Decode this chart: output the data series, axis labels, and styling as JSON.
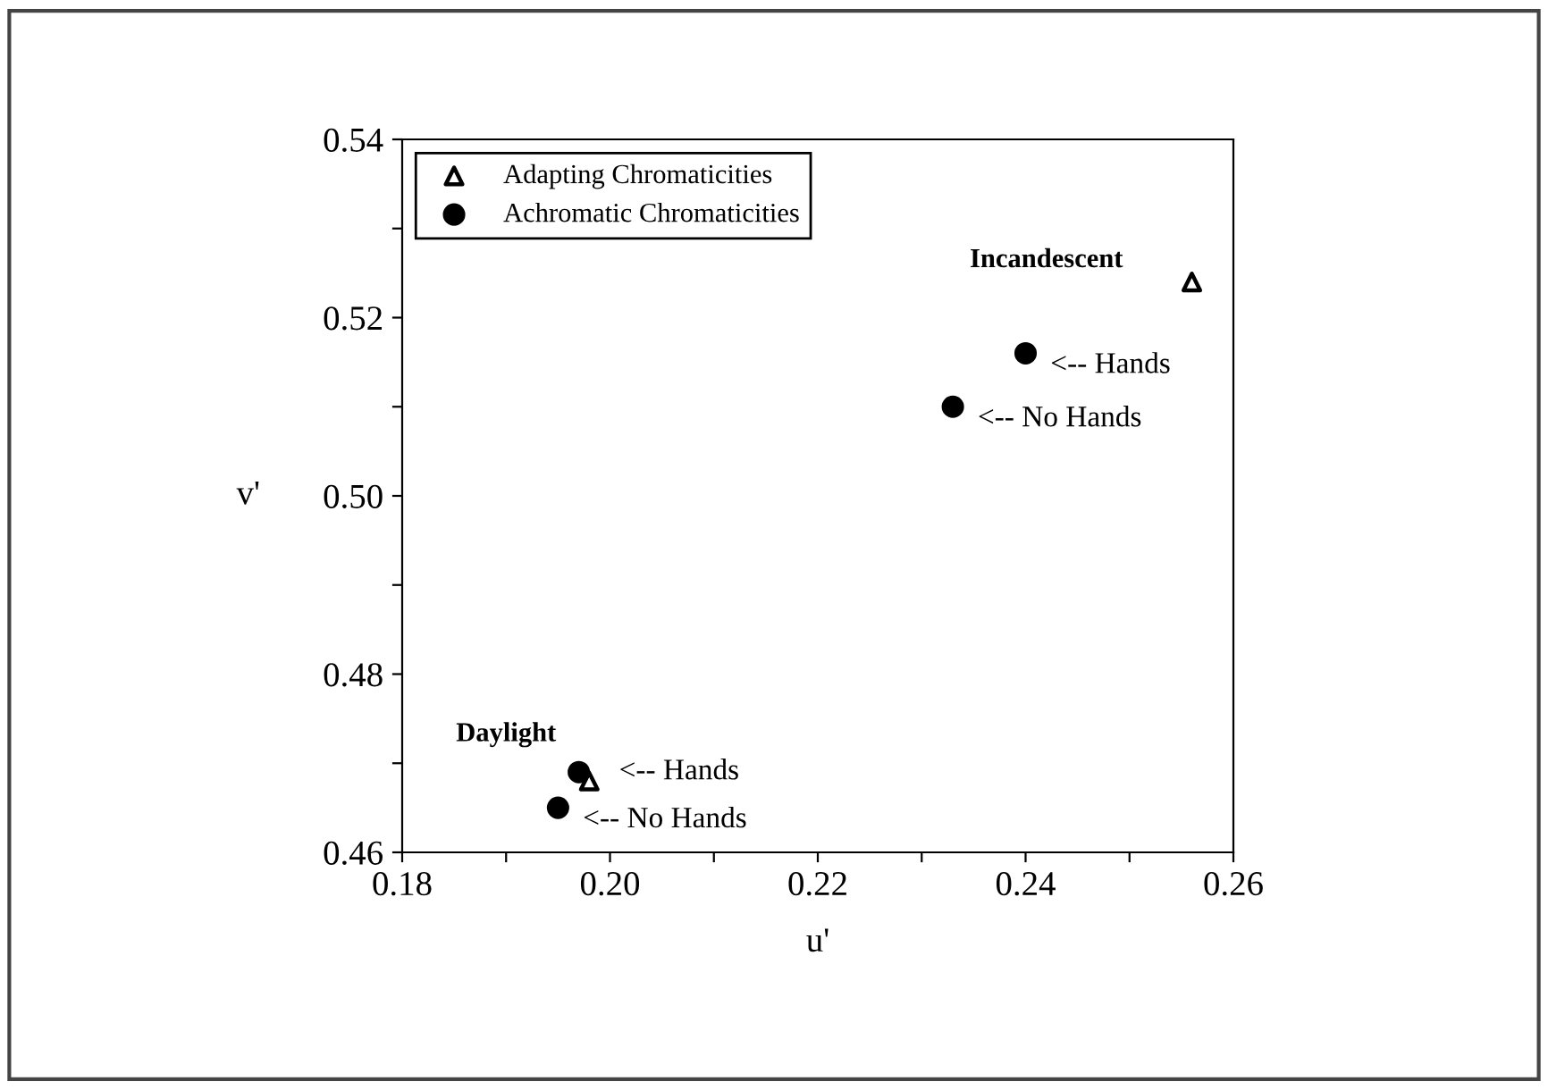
{
  "chart_data": {
    "type": "scatter",
    "xlabel": "u'",
    "ylabel": "v'",
    "xlim": [
      0.18,
      0.26
    ],
    "ylim": [
      0.46,
      0.54
    ],
    "xticks": [
      0.18,
      {
        "value": 0.19,
        "label": null
      },
      {
        "value": 0.2,
        "label": "0.20"
      },
      {
        "value": 0.21,
        "label": null
      },
      0.22,
      {
        "value": 0.23,
        "label": null
      },
      0.24,
      {
        "value": 0.25,
        "label": null
      },
      0.26
    ],
    "yticks": [
      0.46,
      {
        "value": 0.47,
        "label": null
      },
      0.48,
      {
        "value": 0.49,
        "label": null
      },
      {
        "value": 0.5,
        "label": "0.50"
      },
      {
        "value": 0.51,
        "label": null
      },
      0.52,
      {
        "value": 0.53,
        "label": null
      },
      0.54
    ],
    "series": [
      {
        "name": "Adapting Chromaticities",
        "color": "#000000",
        "marker": "triangle",
        "x": [
          0.256,
          0.198
        ],
        "values": [
          0.524,
          0.468
        ]
      },
      {
        "name": "Achromatic Chromaticities",
        "color": "#000000",
        "marker": "circle",
        "x": [
          0.24,
          0.233,
          0.197,
          0.195
        ],
        "values": [
          0.516,
          0.51,
          0.469,
          0.465
        ]
      }
    ],
    "annotations": [
      "Incandescent",
      {
        "text": "<-- Hands",
        "x": 0.24,
        "y": 0.516
      },
      {
        "text": "<-- No Hands",
        "x": 0.233,
        "y": 0.51
      },
      "Daylight",
      {
        "text": "<-- Hands",
        "x": 0.198,
        "y": 0.469
      },
      {
        "text": "<-- No Hands",
        "x": 0.195,
        "y": 0.465
      }
    ],
    "legend": "top left",
    "grid": false
  }
}
